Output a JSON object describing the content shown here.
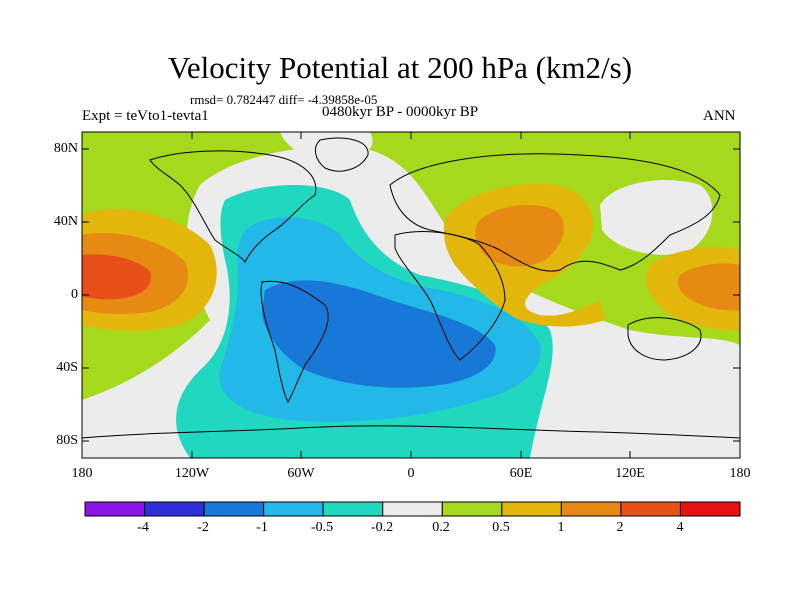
{
  "title": "Velocity Potential at 200 hPa (km2/s)",
  "stats_line": "rmsd= 0.782447 diff= -4.39858e-05",
  "left_label": "Expt = teVto1-tevta1",
  "center_label": "0480kyr BP - 0000kyr BP",
  "right_label": "ANN",
  "lat_labels": [
    "80N",
    "40N",
    "0",
    "40S",
    "80S"
  ],
  "lon_labels": [
    "180",
    "120W",
    "60W",
    "0",
    "60E",
    "120E",
    "180"
  ],
  "colorbar": {
    "labels": [
      "-4",
      "-2",
      "-1",
      "-0.5",
      "-0.2",
      "0.2",
      "0.5",
      "1",
      "2",
      "4"
    ],
    "colors": [
      "#8a17e8",
      "#2f2fd8",
      "#1878d8",
      "#22b8e8",
      "#20d8c0",
      "#ececec",
      "#a6d81c",
      "#e3b60c",
      "#e78a14",
      "#e8501a",
      "#e81414"
    ]
  }
}
